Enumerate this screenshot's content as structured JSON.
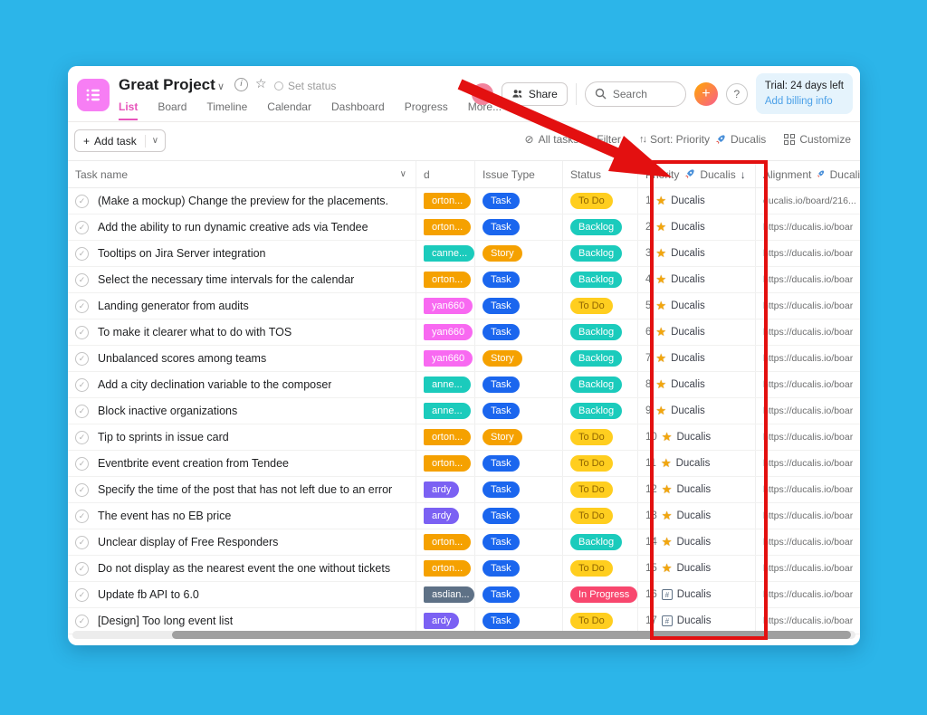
{
  "palette": {
    "orange": "#F5A100",
    "teal": "#1BCBBC",
    "pink": "#F869F1",
    "purple": "#7B61F3",
    "slate": "#5E7186",
    "blue": "#1B66EE",
    "yellow": "#FFCE1F",
    "red": "#F8476E",
    "annotation_red": "#E31010",
    "background_cyan": "#2CB5E9",
    "brand_pink": "#F77EF4",
    "tab_active_pink": "#E754BB",
    "link_blue": "#4BA0E8"
  },
  "type_styles": {
    "Task": {
      "bg": "blue",
      "fg": "#ffffff"
    },
    "Story": {
      "bg": "orange",
      "fg": "#ffffff"
    }
  },
  "status_styles": {
    "To Do": {
      "bg": "yellow",
      "fg": "#8F6400"
    },
    "Backlog": {
      "bg": "teal",
      "fg": "#ffffff"
    },
    "In Progress": {
      "bg": "red",
      "fg": "#ffffff"
    }
  },
  "header": {
    "project_title": "Great Project",
    "set_status": "Set status",
    "tabs": [
      "List",
      "Board",
      "Timeline",
      "Calendar",
      "Dashboard",
      "Progress",
      "More..."
    ],
    "active_tab": "List",
    "avatar_initials": "NB",
    "share_label": "Share",
    "search_placeholder": "Search",
    "plus_label": "+",
    "help_label": "?",
    "trial_text": "Trial: 24 days left",
    "trial_link": "Add billing info"
  },
  "toolbar": {
    "add_task_label": "Add task",
    "all_tasks_label": "All tasks",
    "filter_label": "Filter",
    "sort_label": "Sort: Priority",
    "sort_suffix": "Ducalis",
    "customize_label": "Customize"
  },
  "table_header": {
    "task_name": "Task name",
    "assigned_truncated": "d",
    "issue_type": "Issue Type",
    "status": "Status",
    "priority": "Priority",
    "priority_suffix": "Ducalis",
    "priority_sort_arrow": "↓",
    "alignment": "Alignment",
    "alignment_suffix": "Ducali"
  },
  "priority_suffix": "Ducalis",
  "rows": [
    {
      "name": "(Make a mockup) Change the preview for the placements.",
      "assignee": "orton...",
      "assignee_color": "orange",
      "issue_type": "Task",
      "status": "To Do",
      "priority": "1",
      "priority_icon": "star",
      "alignment": "ducalis.io/board/216..."
    },
    {
      "name": "Add the ability to run dynamic creative ads via Tendee",
      "assignee": "orton...",
      "assignee_color": "orange",
      "issue_type": "Task",
      "status": "Backlog",
      "priority": "2",
      "priority_icon": "star",
      "alignment": "https://ducalis.io/boar"
    },
    {
      "name": "Tooltips on Jira Server integration",
      "assignee": "canne...",
      "assignee_color": "teal",
      "issue_type": "Story",
      "status": "Backlog",
      "priority": "3",
      "priority_icon": "star",
      "alignment": "https://ducalis.io/boar"
    },
    {
      "name": "Select the necessary time intervals for the calendar",
      "assignee": "orton...",
      "assignee_color": "orange",
      "issue_type": "Task",
      "status": "Backlog",
      "priority": "4",
      "priority_icon": "star",
      "alignment": "https://ducalis.io/boar"
    },
    {
      "name": "Landing generator from audits",
      "assignee": "yan660",
      "assignee_color": "pink",
      "issue_type": "Task",
      "status": "To Do",
      "priority": "5",
      "priority_icon": "star",
      "alignment": "https://ducalis.io/boar"
    },
    {
      "name": "To make it clearer what to do with TOS",
      "assignee": "yan660",
      "assignee_color": "pink",
      "issue_type": "Task",
      "status": "Backlog",
      "priority": "6",
      "priority_icon": "star",
      "alignment": "https://ducalis.io/boar"
    },
    {
      "name": "Unbalanced scores among teams",
      "assignee": "yan660",
      "assignee_color": "pink",
      "issue_type": "Story",
      "status": "Backlog",
      "priority": "7",
      "priority_icon": "star",
      "alignment": "https://ducalis.io/boar"
    },
    {
      "name": "Add a city declination variable to the composer",
      "assignee": "anne...",
      "assignee_color": "teal",
      "issue_type": "Task",
      "status": "Backlog",
      "priority": "8",
      "priority_icon": "star",
      "alignment": "https://ducalis.io/boar"
    },
    {
      "name": "Block inactive organizations",
      "assignee": "anne...",
      "assignee_color": "teal",
      "issue_type": "Task",
      "status": "Backlog",
      "priority": "9",
      "priority_icon": "star",
      "alignment": "https://ducalis.io/boar"
    },
    {
      "name": "Tip to sprints in issue card",
      "assignee": "orton...",
      "assignee_color": "orange",
      "issue_type": "Story",
      "status": "To Do",
      "priority": "10",
      "priority_icon": "star",
      "alignment": "https://ducalis.io/boar"
    },
    {
      "name": "Eventbrite event creation from Tendee",
      "assignee": "orton...",
      "assignee_color": "orange",
      "issue_type": "Task",
      "status": "To Do",
      "priority": "11",
      "priority_icon": "star",
      "alignment": "https://ducalis.io/boar"
    },
    {
      "name": "Specify the time of the post that has not left due to an error",
      "assignee": "ardy",
      "assignee_color": "purple",
      "issue_type": "Task",
      "status": "To Do",
      "priority": "12",
      "priority_icon": "star",
      "alignment": "https://ducalis.io/boar"
    },
    {
      "name": "The event has no EB price",
      "assignee": "ardy",
      "assignee_color": "purple",
      "issue_type": "Task",
      "status": "To Do",
      "priority": "13",
      "priority_icon": "star",
      "alignment": "https://ducalis.io/boar"
    },
    {
      "name": "Unclear display of Free Responders",
      "assignee": "orton...",
      "assignee_color": "orange",
      "issue_type": "Task",
      "status": "Backlog",
      "priority": "14",
      "priority_icon": "star",
      "alignment": "https://ducalis.io/boar"
    },
    {
      "name": "Do not display as the nearest event the one without tickets",
      "assignee": "orton...",
      "assignee_color": "orange",
      "issue_type": "Task",
      "status": "To Do",
      "priority": "15",
      "priority_icon": "star",
      "alignment": "https://ducalis.io/boar"
    },
    {
      "name": "Update fb API to 6.0",
      "assignee": "asdian...",
      "assignee_color": "slate",
      "issue_type": "Task",
      "status": "In Progress",
      "priority": "16",
      "priority_icon": "grid",
      "alignment": "https://ducalis.io/boar"
    },
    {
      "name": "[Design] Too long event list",
      "assignee": "ardy",
      "assignee_color": "purple",
      "issue_type": "Task",
      "status": "To Do",
      "priority": "17",
      "priority_icon": "grid",
      "alignment": "https://ducalis.io/boar"
    }
  ]
}
